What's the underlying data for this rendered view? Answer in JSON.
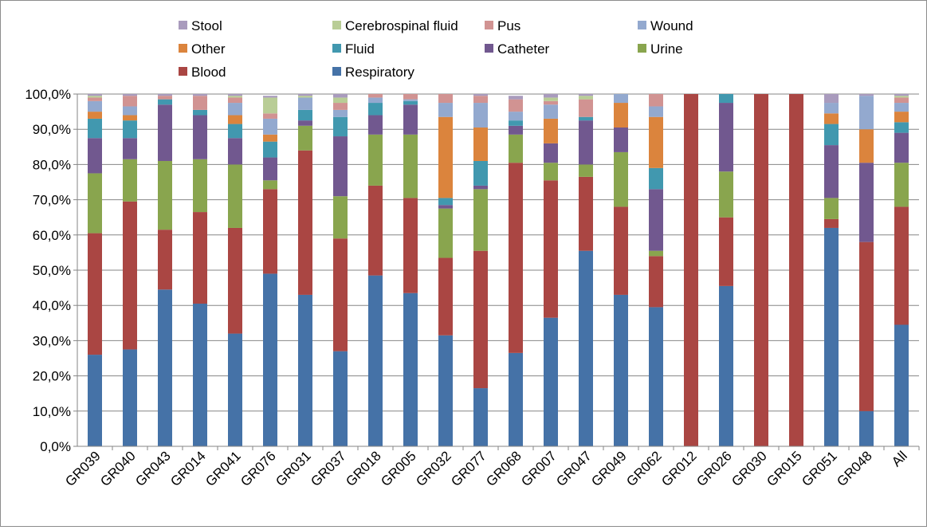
{
  "chart_data": {
    "type": "bar",
    "stacked": true,
    "percent": true,
    "title": "",
    "xlabel": "",
    "ylabel": "",
    "ylim": [
      0,
      100
    ],
    "grid": "horizontal",
    "legend_position": "top",
    "y_ticks": [
      "0,0%",
      "10,0%",
      "20,0%",
      "30,0%",
      "40,0%",
      "50,0%",
      "60,0%",
      "70,0%",
      "80,0%",
      "90,0%",
      "100,0%"
    ],
    "categories": [
      "GR039",
      "GR040",
      "GR043",
      "GR014",
      "GR041",
      "GR076",
      "GR031",
      "GR037",
      "GR018",
      "GR005",
      "GR032",
      "GR077",
      "GR068",
      "GR007",
      "GR047",
      "GR049",
      "GR062",
      "GR012",
      "GR026",
      "GR030",
      "GR015",
      "GR051",
      "GR048",
      "All"
    ],
    "series": [
      {
        "name": "Respiratory",
        "color": "#4572A7",
        "values": [
          26,
          27.5,
          44.5,
          40.5,
          32,
          49,
          43,
          27,
          48.5,
          43.5,
          31.5,
          16.5,
          26.5,
          36.5,
          55.5,
          43,
          39.5,
          0,
          45.5,
          0,
          0,
          62,
          10,
          34.5
        ]
      },
      {
        "name": "Blood",
        "color": "#AA4643",
        "values": [
          34.5,
          42,
          17,
          26,
          30,
          24,
          41,
          32,
          25.5,
          27,
          22,
          39,
          54,
          39,
          21,
          25,
          14.5,
          100,
          19.5,
          100,
          100,
          2.5,
          48,
          33.5
        ]
      },
      {
        "name": "Urine",
        "color": "#89A54E",
        "values": [
          17,
          12,
          19.5,
          15,
          18,
          2.5,
          7,
          12,
          14.5,
          18,
          14,
          17.5,
          8,
          5,
          3.5,
          15.5,
          1.5,
          0,
          13,
          0,
          0,
          6,
          0,
          12.5
        ]
      },
      {
        "name": "Catheter",
        "color": "#71588F",
        "values": [
          10,
          6,
          16,
          12.5,
          7.5,
          6.5,
          1.5,
          17,
          5.5,
          8.5,
          1,
          1,
          2.5,
          5.5,
          12.5,
          7,
          17.5,
          0,
          19.5,
          0,
          0,
          15,
          22.5,
          8.5
        ]
      },
      {
        "name": "Fluid",
        "color": "#4198AF",
        "values": [
          5.5,
          5,
          1.5,
          1.5,
          4,
          4.5,
          3,
          5.5,
          3.5,
          1,
          2,
          7,
          1.5,
          0,
          1,
          0,
          6,
          0,
          2.5,
          0,
          0,
          6,
          0,
          3
        ]
      },
      {
        "name": "Other",
        "color": "#DB843D",
        "values": [
          2,
          1.5,
          0,
          0,
          2.5,
          2,
          0,
          0,
          0,
          0,
          23,
          9.5,
          0,
          7,
          0,
          7,
          14.5,
          0,
          0,
          0,
          0,
          3,
          9.5,
          3
        ]
      },
      {
        "name": "Wound",
        "color": "#93A9CF",
        "values": [
          3,
          2.5,
          0,
          0,
          3.5,
          4.5,
          3.5,
          2,
          1.5,
          0.5,
          4,
          7,
          2.5,
          4,
          0,
          2.5,
          3,
          0,
          0,
          0,
          0,
          3,
          9.5,
          2.5
        ]
      },
      {
        "name": "Pus",
        "color": "#D19392",
        "values": [
          1,
          3,
          1,
          4,
          1.5,
          1.5,
          0,
          2,
          1,
          1.5,
          2.5,
          2,
          3.5,
          1,
          5,
          0,
          3.5,
          0,
          0,
          0,
          0,
          0,
          0,
          1.5
        ]
      },
      {
        "name": "Cerebrospinal fluid",
        "color": "#B9CD96",
        "values": [
          0.5,
          0,
          0,
          0,
          0.5,
          4.5,
          0.5,
          1.5,
          0,
          0,
          0,
          0,
          0,
          1,
          1,
          0,
          0,
          0,
          0,
          0,
          0,
          0,
          0,
          0.5
        ]
      },
      {
        "name": "Stool",
        "color": "#A99BBD",
        "values": [
          0.5,
          0.5,
          0.5,
          0.5,
          0.5,
          0.5,
          0.5,
          1,
          0,
          0,
          0,
          0.5,
          1,
          2,
          0.5,
          0,
          0,
          0,
          0,
          0,
          0,
          3,
          0.5,
          0.5
        ]
      }
    ]
  },
  "legend": {
    "rows": [
      [
        "Stool",
        "Cerebrospinal fluid",
        "Pus",
        "Wound"
      ],
      [
        "Other",
        "Fluid",
        "Catheter",
        "Urine"
      ],
      [
        "Blood",
        "Respiratory"
      ]
    ]
  }
}
